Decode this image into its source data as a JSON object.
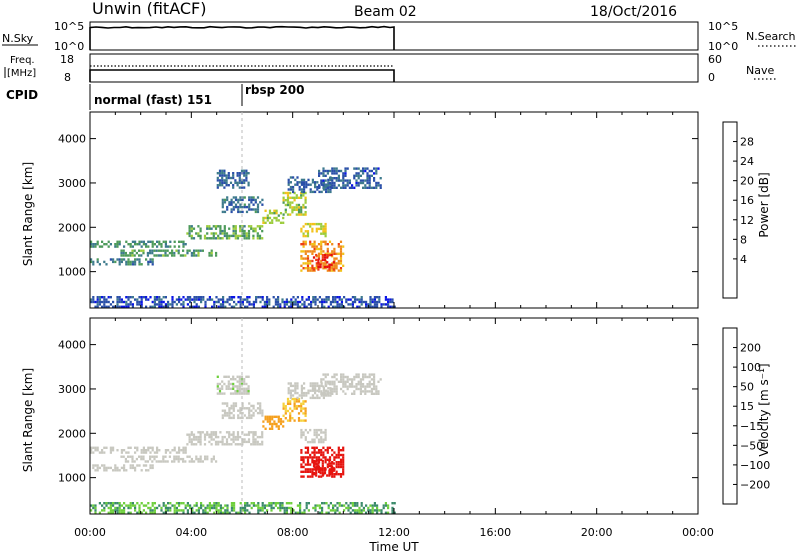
{
  "header": {
    "title": "Unwin (fitACF)",
    "beam": "Beam 02",
    "date": "18/Oct/2016"
  },
  "info_panels": {
    "nsky": {
      "label": "N.Sky",
      "tick_top": "10^5",
      "tick_bottom": "10^0",
      "right_label": "N.Search",
      "right_tick_top": "10^5",
      "right_tick_bottom": "10^0"
    },
    "freq": {
      "label_line1": "Freq.",
      "label_line2": "[MHz]",
      "tick_top": "18",
      "tick_bottom": "8",
      "right_label": "Nave",
      "right_tick_top": "60",
      "right_tick_bottom": "0"
    },
    "cpid": {
      "label": "CPID",
      "segments": [
        {
          "name": "normal (fast) 151",
          "start_hour": 0
        },
        {
          "name": "rbsp 200",
          "start_hour": 6
        }
      ]
    },
    "data_end_hour": 12
  },
  "chart_data": [
    {
      "type": "heatmap",
      "panel": "power",
      "ylabel": "Slant Range [km]",
      "xlim": [
        0,
        24
      ],
      "ylim": [
        180,
        4600
      ],
      "yticks": [
        1000,
        2000,
        3000,
        4000
      ],
      "colorbar": {
        "label": "Power [dB]",
        "ticks": [
          "4",
          "8",
          "12",
          "16",
          "20",
          "24",
          "28"
        ],
        "colors": [
          "#0a14e6",
          "#2a4fa8",
          "#3d7a8c",
          "#4d9a5a",
          "#9ccc3c",
          "#f2c21a",
          "#f08a1c",
          "#ee3d14",
          "#e60f0f"
        ]
      },
      "bands": [
        {
          "t": [
            0.0,
            3.8
          ],
          "r": [
            1550,
            1700
          ],
          "v": 13
        },
        {
          "t": [
            3.8,
            6.8
          ],
          "r": [
            1750,
            2050
          ],
          "v": 15
        },
        {
          "t": [
            0.0,
            2.5
          ],
          "r": [
            1150,
            1300
          ],
          "v": 11
        },
        {
          "t": [
            1.2,
            5.0
          ],
          "r": [
            1350,
            1500
          ],
          "v": 14
        },
        {
          "t": [
            6.8,
            7.6
          ],
          "r": [
            2100,
            2400
          ],
          "v": 18
        },
        {
          "t": [
            7.6,
            8.5
          ],
          "r": [
            2300,
            2800
          ],
          "v": 18
        },
        {
          "t": [
            5.2,
            6.8
          ],
          "r": [
            2350,
            2700
          ],
          "v": 10
        },
        {
          "t": [
            8.3,
            9.3
          ],
          "r": [
            1800,
            2100
          ],
          "v": 20
        },
        {
          "t": [
            5.0,
            6.3
          ],
          "r": [
            2900,
            3300
          ],
          "v": 9
        },
        {
          "t": [
            7.8,
            9.5
          ],
          "r": [
            2800,
            3150
          ],
          "v": 9
        },
        {
          "t": [
            9.0,
            11.5
          ],
          "r": [
            2900,
            3350
          ],
          "v": 8
        },
        {
          "t": [
            8.3,
            10.0
          ],
          "r": [
            1000,
            1700
          ],
          "v": 24
        },
        {
          "t": [
            8.8,
            9.6
          ],
          "r": [
            1050,
            1400
          ],
          "v": 30
        },
        {
          "t": [
            0.0,
            12.0
          ],
          "r": [
            200,
            450
          ],
          "v": 7
        }
      ]
    },
    {
      "type": "heatmap",
      "panel": "velocity",
      "ylabel": "Slant Range [km]",
      "xlabel": "Time UT",
      "xlim": [
        0,
        24
      ],
      "ylim": [
        180,
        4600
      ],
      "yticks": [
        1000,
        2000,
        3000,
        4000
      ],
      "xticks": [
        "00:00",
        "04:00",
        "08:00",
        "12:00",
        "16:00",
        "20:00",
        "00:00"
      ],
      "colorbar": {
        "label": "Velocity [m s⁻¹]",
        "ticks": [
          "200",
          "100",
          "50",
          "15",
          "−15",
          "−50",
          "−100",
          "−200"
        ],
        "colors": [
          "#1414c8",
          "#2a50a0",
          "#3a8a6a",
          "#6ecf3c",
          "#c8c8c0",
          "#f6d23c",
          "#f5a01e",
          "#f06a14",
          "#e6140f"
        ]
      },
      "bands": [
        {
          "t": [
            0.0,
            3.8
          ],
          "r": [
            1550,
            1700
          ],
          "v": 0
        },
        {
          "t": [
            3.8,
            6.8
          ],
          "r": [
            1750,
            2050
          ],
          "v": 0
        },
        {
          "t": [
            0.0,
            2.5
          ],
          "r": [
            1150,
            1300
          ],
          "v": 0
        },
        {
          "t": [
            1.2,
            5.0
          ],
          "r": [
            1350,
            1500
          ],
          "v": 0
        },
        {
          "t": [
            6.8,
            7.6
          ],
          "r": [
            2100,
            2400
          ],
          "v": -40
        },
        {
          "t": [
            7.6,
            8.5
          ],
          "r": [
            2300,
            2800
          ],
          "v": -30
        },
        {
          "t": [
            5.2,
            6.8
          ],
          "r": [
            2350,
            2700
          ],
          "v": 0
        },
        {
          "t": [
            8.3,
            9.3
          ],
          "r": [
            1800,
            2100
          ],
          "v": 0
        },
        {
          "t": [
            5.0,
            6.3
          ],
          "r": [
            2900,
            3300
          ],
          "v": 10
        },
        {
          "t": [
            7.8,
            9.5
          ],
          "r": [
            2800,
            3150
          ],
          "v": 0
        },
        {
          "t": [
            9.0,
            11.5
          ],
          "r": [
            2900,
            3350
          ],
          "v": 0
        },
        {
          "t": [
            8.3,
            10.0
          ],
          "r": [
            1000,
            1700
          ],
          "v": -230
        },
        {
          "t": [
            8.8,
            9.6
          ],
          "r": [
            1050,
            1400
          ],
          "v": -250
        },
        {
          "t": [
            0.0,
            12.0
          ],
          "r": [
            200,
            450
          ],
          "v": 30
        }
      ]
    }
  ]
}
